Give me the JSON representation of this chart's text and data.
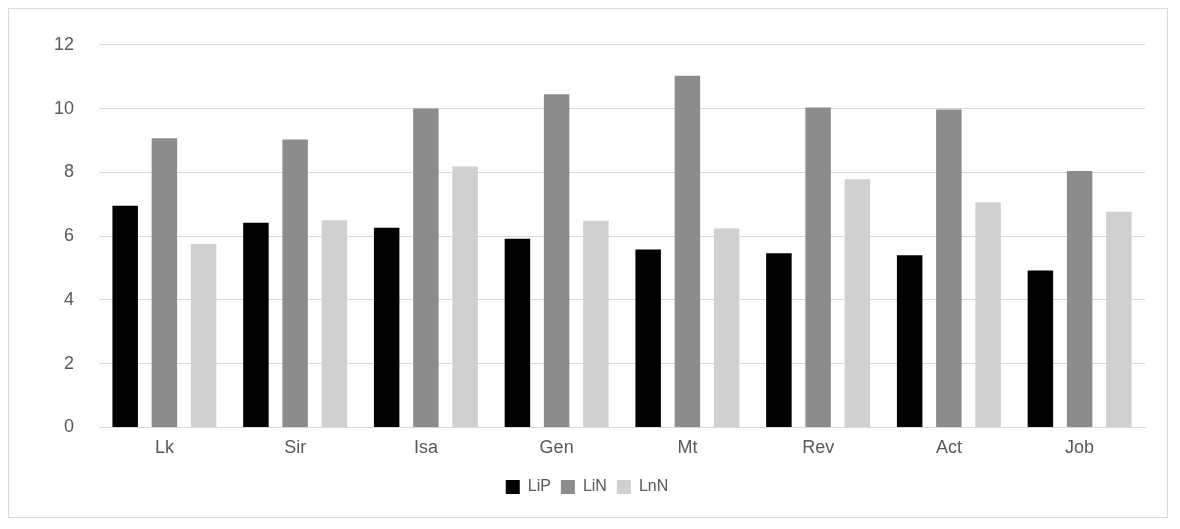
{
  "chart_data": {
    "type": "bar",
    "categories": [
      "Lk",
      "Sir",
      "Isa",
      "Gen",
      "Mt",
      "Rev",
      "Act",
      "Job"
    ],
    "series": [
      {
        "name": "LiP",
        "color": "#000000",
        "values": [
          6.95,
          6.42,
          6.26,
          5.92,
          5.58,
          5.46,
          5.4,
          4.92
        ]
      },
      {
        "name": "LiN",
        "color": "#8c8c8c",
        "values": [
          9.07,
          9.03,
          10.0,
          10.45,
          11.03,
          10.03,
          9.97,
          8.04
        ]
      },
      {
        "name": "LnN",
        "color": "#d0d0d0",
        "values": [
          5.75,
          6.5,
          8.18,
          6.48,
          6.24,
          7.78,
          7.06,
          6.76
        ]
      }
    ],
    "ylim": [
      0,
      12
    ],
    "yticks": [
      0,
      2,
      4,
      6,
      8,
      10,
      12
    ],
    "grid": "y",
    "legend": "bottom"
  }
}
